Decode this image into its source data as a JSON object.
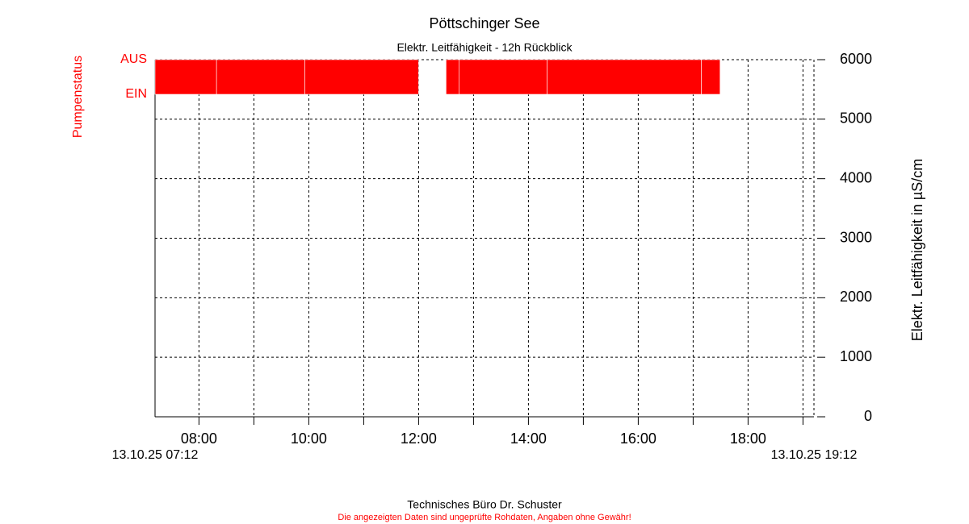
{
  "chart_data": {
    "type": "bar",
    "title": "Pöttschinger See",
    "subtitle": "Elektr. Leitfähigkeit - 12h Rückblick",
    "y_label": "Elektr. Leitfähigkeit in µS/cm",
    "pump_label": "Pumpenstatus",
    "pump_levels": [
      "AUS",
      "EIN"
    ],
    "color": "#ff0000",
    "intervals": [
      [
        7.2,
        8.32
      ],
      [
        8.32,
        9.93
      ],
      [
        9.93,
        12.0
      ],
      [
        12.5,
        12.74
      ],
      [
        12.74,
        14.34
      ],
      [
        14.34,
        17.15
      ],
      [
        17.15,
        17.49
      ]
    ],
    "xlim": [
      7.2,
      19.2
    ],
    "xticks": [
      {
        "value": 8,
        "label": "08:00"
      },
      {
        "value": 10,
        "label": "10:00"
      },
      {
        "value": 12,
        "label": "12:00"
      },
      {
        "value": 14,
        "label": "14:00"
      },
      {
        "value": 16,
        "label": "16:00"
      },
      {
        "value": 18,
        "label": "18:00"
      }
    ],
    "xminorticks": [
      9,
      11,
      13,
      15,
      17,
      19
    ],
    "x_start_label": "13.10.25 07:12",
    "x_end_label": "13.10.25 19:12",
    "ylim": [
      0,
      6000
    ],
    "yticks": [
      0,
      1000,
      2000,
      3000,
      4000,
      5000,
      6000
    ],
    "grid": true,
    "footer": [
      "Technisches Büro Dr. Schuster",
      "Die angezeigten Daten sind ungeprüfte Rohdaten, Angaben ohne Gewähr!"
    ]
  }
}
